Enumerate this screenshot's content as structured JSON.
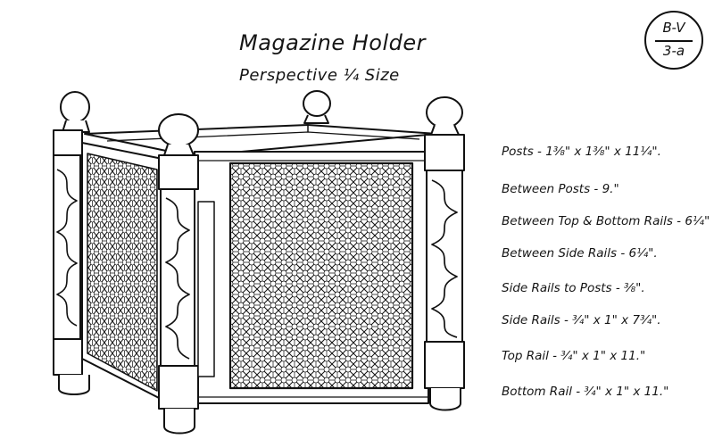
{
  "title": "Magazine Holder",
  "subtitle": "Perspective ¼ Size",
  "badge": {
    "top": "B-V",
    "bottom": "3-a"
  },
  "specs": [
    "Posts - 1⅜\" x 1⅜\" x 11¼\".",
    "Between Posts - 9.\"",
    "Between Top & Bottom Rails - 6¼\"",
    "Between Side Rails - 6¼\".",
    "Side Rails to Posts - ⅜\".",
    "Side Rails - ¾\" x 1\" x 7¾\".",
    "Top Rail - ¾\" x 1\" x 11.\"",
    "Bottom Rail - ¾\" x 1\" x 11.\""
  ]
}
